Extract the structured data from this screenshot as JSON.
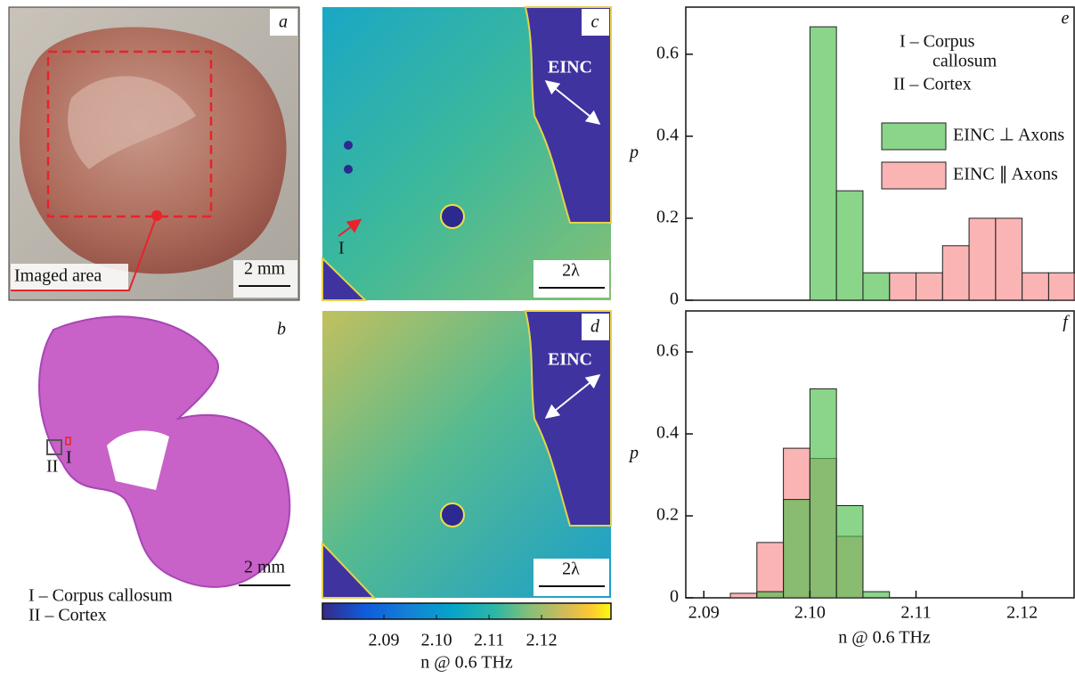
{
  "chart_data": [
    {
      "type": "histogram",
      "panel_label": "e",
      "ylabel": "p",
      "annotations": [
        "I – Corpus",
        "callosum",
        "II – Cortex"
      ],
      "bins": [
        2.0925,
        2.095,
        2.0975,
        2.1,
        2.1025,
        2.105,
        2.1075,
        2.11,
        2.1125,
        2.115,
        2.1175,
        2.12,
        2.1225,
        2.125
      ],
      "series": [
        {
          "name": "EINC ⊥ Axons",
          "color": "#4cbf4c",
          "values": [
            0,
            0,
            0,
            0.667,
            0.267,
            0.067,
            0,
            0,
            0,
            0,
            0,
            0,
            0
          ]
        },
        {
          "name": "EINC ∥ Axons",
          "color": "#f98c8c",
          "values": [
            0,
            0,
            0,
            0,
            0,
            0,
            0.067,
            0.067,
            0.133,
            0.2,
            0.2,
            0.067,
            0.067
          ]
        }
      ],
      "xlim": [
        2.0883,
        2.1249
      ],
      "ylim": [
        0,
        0.715
      ],
      "yticks": [
        0,
        0.2,
        0.4,
        0.6
      ]
    },
    {
      "type": "histogram",
      "panel_label": "f",
      "ylabel": "p",
      "xlabel": "n @ 0.6 THz",
      "bins": [
        2.0925,
        2.095,
        2.0975,
        2.1,
        2.1025,
        2.105,
        2.1075,
        2.11,
        2.1125,
        2.115,
        2.1175,
        2.12,
        2.1225,
        2.125
      ],
      "series": [
        {
          "name": "EINC ⊥ Axons",
          "color": "#4cbf4c",
          "values": [
            0,
            0.015,
            0.24,
            0.51,
            0.225,
            0.015,
            0,
            0,
            0,
            0,
            0,
            0,
            0
          ]
        },
        {
          "name": "EINC ∥ Axons",
          "color": "#f98c8c",
          "values": [
            0.011,
            0.135,
            0.365,
            0.34,
            0.15,
            0,
            0,
            0,
            0,
            0,
            0,
            0,
            0
          ]
        }
      ],
      "xlim": [
        2.0883,
        2.1249
      ],
      "ylim": [
        0,
        0.7
      ],
      "yticks": [
        0,
        0.2,
        0.4,
        0.6
      ],
      "xticks": [
        2.09,
        {
          "value": 2.1,
          "label": "2.10"
        },
        2.11,
        2.12
      ]
    },
    {
      "type": "colorbar",
      "xlabel": "n @ 0.6 THz",
      "xlim": [
        2.0783,
        2.1332
      ],
      "xticks": [
        2.09,
        {
          "value": 2.1,
          "label": "2.10"
        },
        2.11,
        2.12
      ]
    }
  ],
  "panels": {
    "photo": {
      "label": "a",
      "annotation": "Imaged area",
      "scale": "2 mm"
    },
    "histology": {
      "label": "b",
      "scale": "2 mm",
      "marker_1": "I",
      "marker_2": "II",
      "legend": [
        "I – Corpus callosum",
        "II – Cortex"
      ]
    },
    "map_perp": {
      "label": "c",
      "field": "EINC",
      "scale": "2λ",
      "marker": "I"
    },
    "map_par": {
      "label": "d",
      "field": "EINC",
      "scale": "2λ"
    }
  }
}
